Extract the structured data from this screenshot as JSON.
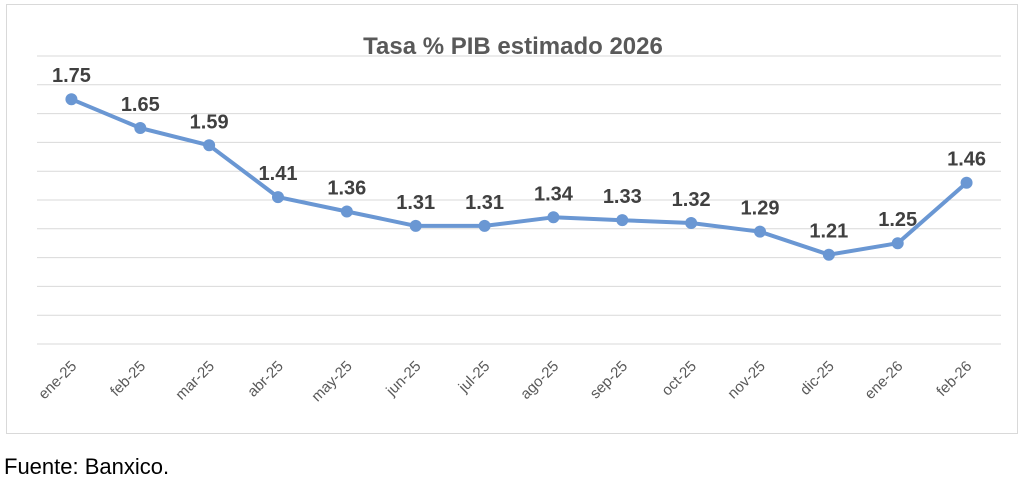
{
  "chart_data": {
    "type": "line",
    "title": "Tasa % PIB estimado 2026",
    "xlabel": "",
    "ylabel": "",
    "categories": [
      "ene-25",
      "feb-25",
      "mar-25",
      "abr-25",
      "may-25",
      "jun-25",
      "jul-25",
      "ago-25",
      "sep-25",
      "oct-25",
      "nov-25",
      "dic-25",
      "ene-26",
      "feb-26"
    ],
    "series": [
      {
        "values": [
          1.75,
          1.65,
          1.59,
          1.41,
          1.36,
          1.31,
          1.31,
          1.34,
          1.33,
          1.32,
          1.29,
          1.21,
          1.25,
          1.46
        ],
        "labels": [
          "1.75",
          "1.65",
          "1.59",
          "1.41",
          "1.36",
          "1.31",
          "1.31",
          "1.34",
          "1.33",
          "1.32",
          "1.29",
          "1.21",
          "1.25",
          "1.46"
        ]
      }
    ],
    "ylim": [
      0.9,
      1.9
    ],
    "grid": true,
    "y_tick_labels_visible": false,
    "x_tick_rotation": -45,
    "line_color": "#6a97d3",
    "marker_color": "#6a97d3"
  },
  "footer": {
    "source": "Fuente: Banxico."
  }
}
